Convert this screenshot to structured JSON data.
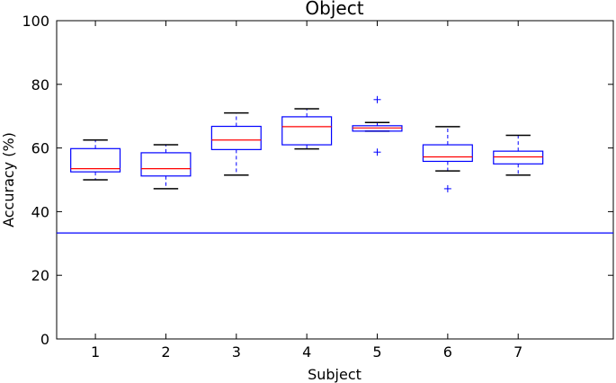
{
  "chart_data": {
    "type": "box",
    "title": "Object",
    "xlabel": "Subject",
    "ylabel": "Accuracy (%)",
    "categories": [
      "1",
      "2",
      "3",
      "4",
      "5",
      "6",
      "7"
    ],
    "ylim": [
      0,
      100
    ],
    "yticks": [
      0,
      20,
      40,
      60,
      80,
      100
    ],
    "grid": false,
    "reference_line": 33.3,
    "colors": {
      "box": "#0000ff",
      "median": "#ff0000",
      "whisker_cap": "#000000",
      "outlier": "#0000ff",
      "reference_line": "#0000ff"
    },
    "boxes": [
      {
        "category": "1",
        "whisker_low": 50.0,
        "q1": 52.5,
        "median": 53.5,
        "q3": 59.8,
        "whisker_high": 62.5,
        "outliers": []
      },
      {
        "category": "2",
        "whisker_low": 47.2,
        "q1": 51.2,
        "median": 53.5,
        "q3": 58.5,
        "whisker_high": 61.0,
        "outliers": []
      },
      {
        "category": "3",
        "whisker_low": 51.5,
        "q1": 59.5,
        "median": 62.5,
        "q3": 66.8,
        "whisker_high": 71.0,
        "outliers": []
      },
      {
        "category": "4",
        "whisker_low": 59.7,
        "q1": 61.0,
        "median": 66.7,
        "q3": 69.8,
        "whisker_high": 72.3,
        "outliers": []
      },
      {
        "category": "5",
        "whisker_low": 65.3,
        "q1": 65.3,
        "median": 66.3,
        "q3": 67.0,
        "whisker_high": 68.0,
        "outliers": [
          75.2,
          58.7
        ]
      },
      {
        "category": "6",
        "whisker_low": 52.8,
        "q1": 55.8,
        "median": 57.2,
        "q3": 61.0,
        "whisker_high": 66.7,
        "outliers": [
          47.2
        ]
      },
      {
        "category": "7",
        "whisker_low": 51.5,
        "q1": 55.0,
        "median": 57.2,
        "q3": 59.0,
        "whisker_high": 64.0,
        "outliers": []
      }
    ]
  }
}
